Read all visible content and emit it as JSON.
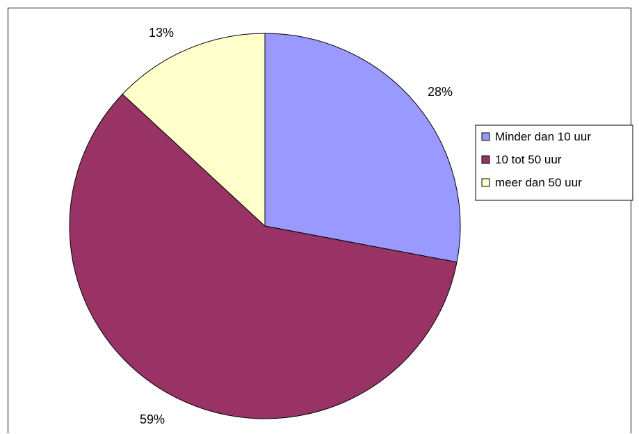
{
  "chart_data": {
    "type": "pie",
    "title": "",
    "categories": [
      "Minder dan 10 uur",
      "10 tot 50 uur",
      "meer dan 50 uur"
    ],
    "values": [
      28,
      59,
      13
    ],
    "value_labels": [
      "28%",
      "59%",
      "13%"
    ],
    "colors": [
      "#9999ff",
      "#993366",
      "#ffffcc"
    ],
    "start_angle_deg": 0,
    "direction": "clockwise",
    "legend_position": "right",
    "slice_border_color": "#000000"
  }
}
